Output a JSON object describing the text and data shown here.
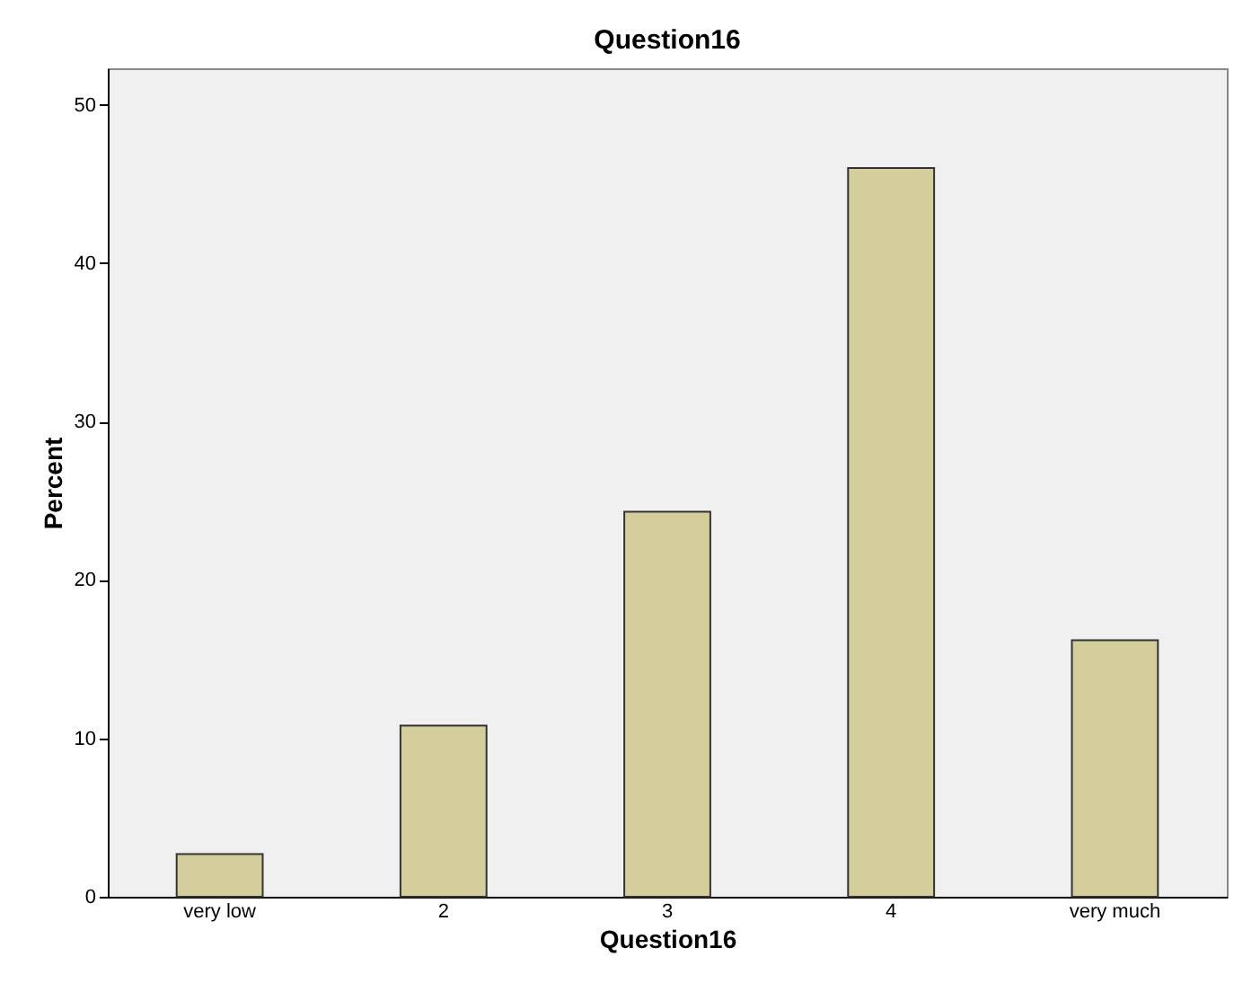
{
  "chart_data": {
    "type": "bar",
    "title": "Question16",
    "xlabel": "Question16",
    "ylabel": "Percent",
    "categories": [
      "very low",
      "2",
      "3",
      "4",
      "very much"
    ],
    "values": [
      2.7,
      10.8,
      24.3,
      46.0,
      16.2
    ],
    "color": "#d3ce9c",
    "ylim": [
      0,
      52.3
    ],
    "yticks": [
      0,
      10,
      20,
      30,
      40,
      50
    ],
    "grid": false
  }
}
